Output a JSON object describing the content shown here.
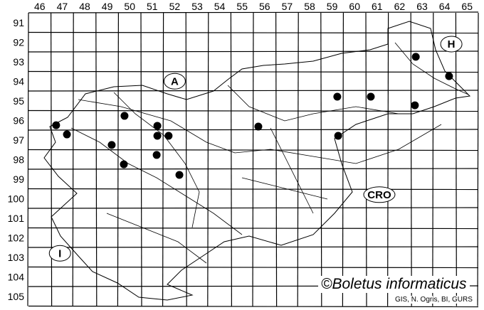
{
  "map": {
    "columns": [
      "46",
      "47",
      "48",
      "49",
      "50",
      "51",
      "52",
      "53",
      "54",
      "55",
      "56",
      "57",
      "58",
      "59",
      "60",
      "61",
      "62",
      "63",
      "64",
      "65"
    ],
    "rows": [
      "91",
      "92",
      "93",
      "94",
      "95",
      "96",
      "97",
      "98",
      "99",
      "100",
      "101",
      "102",
      "103",
      "104",
      "105"
    ],
    "country_labels": [
      {
        "text": "A",
        "col": 52.5,
        "row": 94.5
      },
      {
        "text": "H",
        "col": 64.8,
        "row": 92.6
      },
      {
        "text": "CRO",
        "col": 61.6,
        "row": 100.3
      },
      {
        "text": "I",
        "col": 47.4,
        "row": 103.3
      }
    ],
    "records": [
      {
        "col": 47.23,
        "row": 96.75
      },
      {
        "col": 47.71,
        "row": 97.22
      },
      {
        "col": 50.27,
        "row": 96.27
      },
      {
        "col": 51.73,
        "row": 96.78
      },
      {
        "col": 51.73,
        "row": 97.29
      },
      {
        "col": 52.23,
        "row": 97.29
      },
      {
        "col": 49.7,
        "row": 97.76
      },
      {
        "col": 51.7,
        "row": 98.27
      },
      {
        "col": 50.24,
        "row": 98.75
      },
      {
        "col": 52.71,
        "row": 99.29
      },
      {
        "col": 56.22,
        "row": 96.82
      },
      {
        "col": 59.73,
        "row": 95.29
      },
      {
        "col": 61.22,
        "row": 95.29
      },
      {
        "col": 63.18,
        "row": 95.73
      },
      {
        "col": 63.22,
        "row": 93.25
      },
      {
        "col": 64.7,
        "row": 94.24
      },
      {
        "col": 59.77,
        "row": 97.29
      }
    ],
    "record_color": "#000000",
    "grid_color": "#000000"
  },
  "footer": {
    "copyright": "©Boletus informaticus",
    "credit": "GIS, N. Ogris, BI, GURS"
  }
}
